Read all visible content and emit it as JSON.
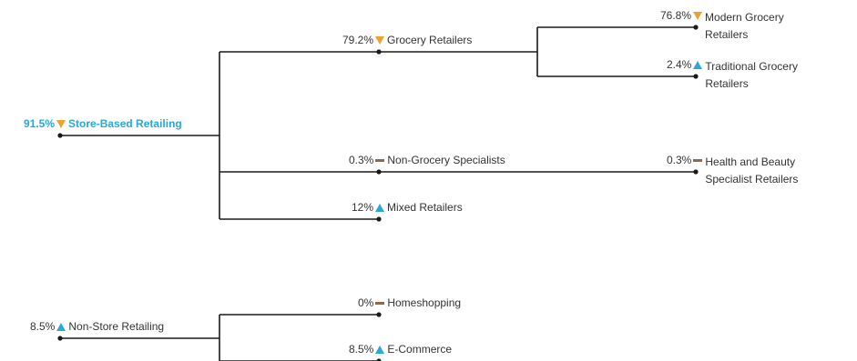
{
  "colors": {
    "line": "#1a1a1a",
    "down": "#f0a030",
    "up": "#29a9d8",
    "flat": "#8b6a4e",
    "highlight": "#29a9d8"
  },
  "nodes": [
    {
      "id": "store_based",
      "value": "91.5%",
      "trend": "down",
      "label": "Store-Based Retailing",
      "highlight": true
    },
    {
      "id": "grocery",
      "value": "79.2%",
      "trend": "down",
      "label": "Grocery Retailers"
    },
    {
      "id": "modern_grocery",
      "value": "76.8%",
      "trend": "down",
      "label": "Modern Grocery Retailers"
    },
    {
      "id": "traditional_grocery",
      "value": "2.4%",
      "trend": "up",
      "label": "Traditional Grocery Retailers"
    },
    {
      "id": "non_grocery",
      "value": "0.3%",
      "trend": "flat",
      "label": "Non-Grocery Specialists"
    },
    {
      "id": "health_beauty",
      "value": "0.3%",
      "trend": "flat",
      "label": "Health and Beauty Specialist Retailers"
    },
    {
      "id": "mixed",
      "value": "12%",
      "trend": "up",
      "label": "Mixed Retailers"
    },
    {
      "id": "non_store",
      "value": "8.5%",
      "trend": "up",
      "label": "Non-Store Retailing"
    },
    {
      "id": "homeshopping",
      "value": "0%",
      "trend": "flat",
      "label": "Homeshopping"
    },
    {
      "id": "ecommerce",
      "value": "8.5%",
      "trend": "up",
      "label": "E-Commerce"
    }
  ],
  "edges": [
    [
      "store_based",
      "grocery"
    ],
    [
      "store_based",
      "non_grocery"
    ],
    [
      "store_based",
      "mixed"
    ],
    [
      "grocery",
      "modern_grocery"
    ],
    [
      "grocery",
      "traditional_grocery"
    ],
    [
      "non_grocery",
      "health_beauty"
    ],
    [
      "non_store",
      "homeshopping"
    ],
    [
      "non_store",
      "ecommerce"
    ]
  ]
}
